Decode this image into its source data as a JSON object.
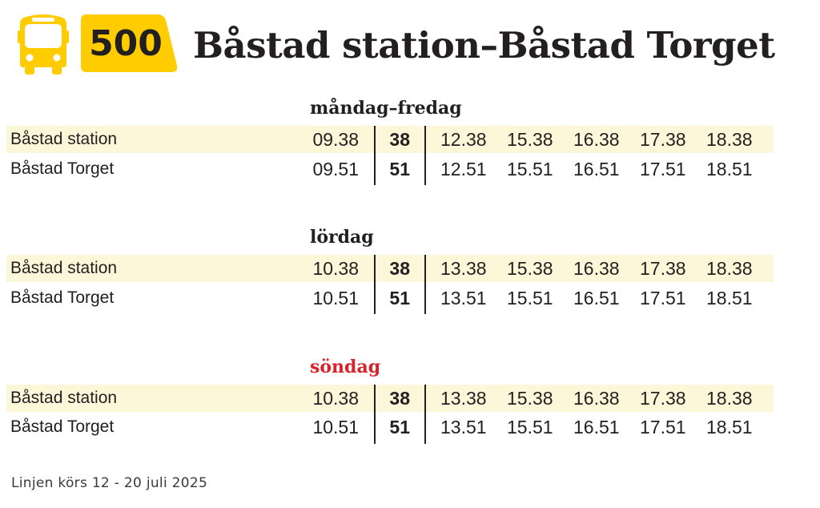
{
  "header": {
    "route_number": "500",
    "title": "Båstad station–Båstad Torget",
    "accent_color": "#ffcc00",
    "icon": "bus-icon"
  },
  "sections": [
    {
      "day": "måndag–fredag",
      "day_color": "#231f20",
      "rows": [
        {
          "stop": "Båstad station",
          "first": "09.38",
          "minute": "38",
          "times": [
            "12.38",
            "15.38",
            "16.38",
            "17.38",
            "18.38"
          ]
        },
        {
          "stop": "Båstad Torget",
          "first": "09.51",
          "minute": "51",
          "times": [
            "12.51",
            "15.51",
            "16.51",
            "17.51",
            "18.51"
          ]
        }
      ]
    },
    {
      "day": "lördag",
      "day_color": "#231f20",
      "rows": [
        {
          "stop": "Båstad station",
          "first": "10.38",
          "minute": "38",
          "times": [
            "13.38",
            "15.38",
            "16.38",
            "17.38",
            "18.38"
          ]
        },
        {
          "stop": "Båstad Torget",
          "first": "10.51",
          "minute": "51",
          "times": [
            "13.51",
            "15.51",
            "16.51",
            "17.51",
            "18.51"
          ]
        }
      ]
    },
    {
      "day": "söndag",
      "day_color": "#d8232a",
      "rows": [
        {
          "stop": "Båstad station",
          "first": "10.38",
          "minute": "38",
          "times": [
            "13.38",
            "15.38",
            "16.38",
            "17.38",
            "18.38"
          ]
        },
        {
          "stop": "Båstad Torget",
          "first": "10.51",
          "minute": "51",
          "times": [
            "13.51",
            "15.51",
            "16.51",
            "17.51",
            "18.51"
          ]
        }
      ]
    }
  ],
  "footer": {
    "note": "Linjen körs 12 - 20 juli 2025"
  }
}
